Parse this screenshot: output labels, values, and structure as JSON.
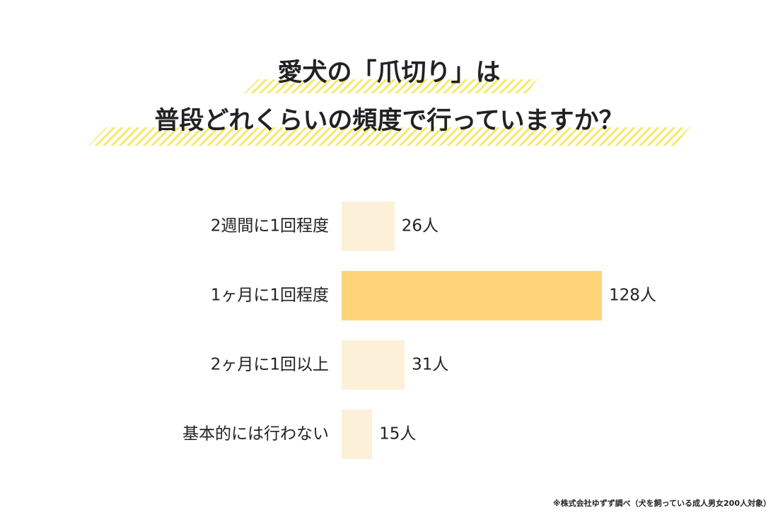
{
  "chart_data": {
    "type": "bar",
    "orientation": "horizontal",
    "title": [
      "愛犬の「爪切り」は",
      "普段どれくらいの頻度で行っていますか？"
    ],
    "categories": [
      "2週間に1回程度",
      "1ヶ月に1回程度",
      "2ヶ月に1回以上",
      "基本的には行わない"
    ],
    "values": [
      26,
      128,
      31,
      15
    ],
    "value_labels": [
      "26人",
      "128人",
      "31人",
      "15人"
    ],
    "colors": [
      "#fdf0d8",
      "#fdd47a",
      "#fdf0d8",
      "#fdf0d8"
    ],
    "note": "※株式会社ゆずず調べ（犬を飼っている成人男女200人対象）"
  }
}
